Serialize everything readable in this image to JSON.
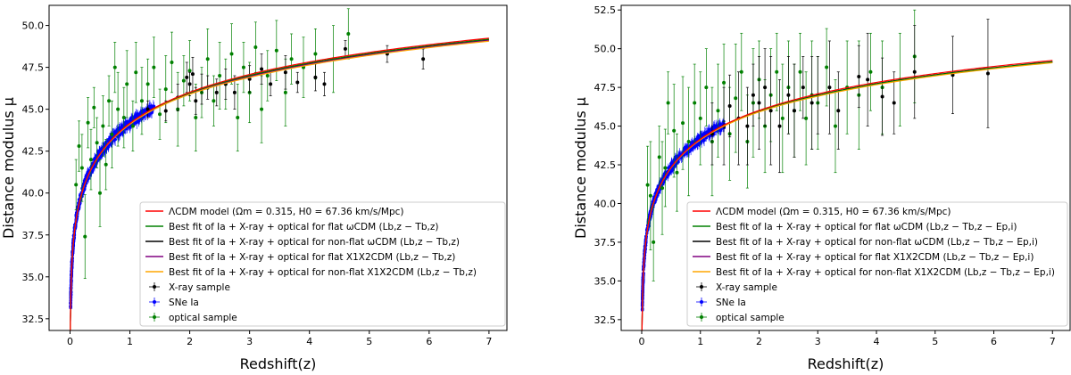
{
  "chart_data": [
    {
      "type": "scatter",
      "xlabel": "Redshift(z)",
      "ylabel": "Distance modulus μ",
      "xlim": [
        -0.35,
        7.3
      ],
      "ylim": [
        31.8,
        51.2
      ],
      "xticks": [
        "0",
        "1",
        "2",
        "3",
        "4",
        "5",
        "6",
        "7"
      ],
      "xtick_values": [
        0,
        1,
        2,
        3,
        4,
        5,
        6,
        7
      ],
      "yticks": [
        "32.5",
        "35.0",
        "37.5",
        "40.0",
        "42.5",
        "45.0",
        "47.5",
        "50.0"
      ],
      "ytick_values": [
        32.5,
        35,
        37.5,
        40,
        42.5,
        45,
        47.5,
        50
      ],
      "legend_position": "lower-right",
      "legend": [
        {
          "label": "ΛCDM model (Ωm = 0.315, H0 = 67.36 km/s/Mpc)",
          "color": "#ff0000",
          "kind": "line"
        },
        {
          "label": "Best fit of Ia + X-ray + optical for flat ωCDM (Lb,z − Tb,z)",
          "color": "#008000",
          "kind": "line"
        },
        {
          "label": "Best fit of Ia + X-ray + optical for non-flat ωCDM (Lb,z − Tb,z)",
          "color": "#000000",
          "kind": "line"
        },
        {
          "label": "Best fit of Ia + X-ray + optical for flat X1X2CDM (Lb,z − Tb,z)",
          "color": "#800080",
          "kind": "line"
        },
        {
          "label": "Best fit of Ia + X-ray + optical for non-flat X1X2CDM (Lb,z − Tb,z)",
          "color": "#ffa500",
          "kind": "line"
        },
        {
          "label": "X-ray sample",
          "color": "#000000",
          "kind": "marker"
        },
        {
          "label": "SNe Ia",
          "color": "#0000ff",
          "kind": "marker"
        },
        {
          "label": "optical sample",
          "color": "#008000",
          "kind": "marker"
        }
      ],
      "curve_offsets": [
        0.0,
        -0.06,
        -0.1,
        -0.13,
        -0.18
      ],
      "xray_points": [
        {
          "x": 1.3,
          "y": 45.0,
          "err": 0.5
        },
        {
          "x": 1.6,
          "y": 44.9,
          "err": 0.6
        },
        {
          "x": 1.8,
          "y": 45.7,
          "err": 0.8
        },
        {
          "x": 1.95,
          "y": 46.9,
          "err": 0.9
        },
        {
          "x": 2.0,
          "y": 46.5,
          "err": 0.7
        },
        {
          "x": 2.05,
          "y": 47.1,
          "err": 1.0
        },
        {
          "x": 2.1,
          "y": 45.5,
          "err": 0.8
        },
        {
          "x": 2.2,
          "y": 46.2,
          "err": 0.9
        },
        {
          "x": 2.3,
          "y": 46.3,
          "err": 0.7
        },
        {
          "x": 2.45,
          "y": 46.0,
          "err": 0.8
        },
        {
          "x": 2.6,
          "y": 46.5,
          "err": 0.9
        },
        {
          "x": 2.75,
          "y": 46.0,
          "err": 1.0
        },
        {
          "x": 3.0,
          "y": 46.8,
          "err": 0.8
        },
        {
          "x": 3.2,
          "y": 47.4,
          "err": 0.9
        },
        {
          "x": 3.35,
          "y": 46.5,
          "err": 0.7
        },
        {
          "x": 3.6,
          "y": 47.2,
          "err": 1.0
        },
        {
          "x": 3.8,
          "y": 46.6,
          "err": 0.6
        },
        {
          "x": 4.1,
          "y": 46.9,
          "err": 0.8
        },
        {
          "x": 4.25,
          "y": 46.5,
          "err": 0.7
        },
        {
          "x": 4.6,
          "y": 48.6,
          "err": 0.5
        },
        {
          "x": 5.3,
          "y": 48.3,
          "err": 0.5
        },
        {
          "x": 5.9,
          "y": 48.0,
          "err": 0.6
        }
      ],
      "optical_points": [
        {
          "x": 0.1,
          "y": 40.5,
          "err": 1.5
        },
        {
          "x": 0.15,
          "y": 42.8,
          "err": 1.5
        },
        {
          "x": 0.2,
          "y": 41.5,
          "err": 2.0
        },
        {
          "x": 0.25,
          "y": 37.4,
          "err": 2.5
        },
        {
          "x": 0.3,
          "y": 44.2,
          "err": 1.5
        },
        {
          "x": 0.35,
          "y": 42.0,
          "err": 1.8
        },
        {
          "x": 0.4,
          "y": 45.1,
          "err": 1.2
        },
        {
          "x": 0.45,
          "y": 43.0,
          "err": 1.5
        },
        {
          "x": 0.5,
          "y": 40.0,
          "err": 2.0
        },
        {
          "x": 0.55,
          "y": 44.0,
          "err": 1.8
        },
        {
          "x": 0.6,
          "y": 41.7,
          "err": 1.5
        },
        {
          "x": 0.65,
          "y": 45.5,
          "err": 1.5
        },
        {
          "x": 0.7,
          "y": 43.5,
          "err": 2.0
        },
        {
          "x": 0.75,
          "y": 47.5,
          "err": 1.5
        },
        {
          "x": 0.8,
          "y": 45.0,
          "err": 2.2
        },
        {
          "x": 0.9,
          "y": 44.5,
          "err": 1.8
        },
        {
          "x": 0.95,
          "y": 46.5,
          "err": 2.0
        },
        {
          "x": 1.05,
          "y": 44.0,
          "err": 1.5
        },
        {
          "x": 1.1,
          "y": 47.2,
          "err": 1.8
        },
        {
          "x": 1.2,
          "y": 45.5,
          "err": 2.0
        },
        {
          "x": 1.3,
          "y": 46.5,
          "err": 1.5
        },
        {
          "x": 1.4,
          "y": 47.5,
          "err": 1.8
        },
        {
          "x": 1.5,
          "y": 44.7,
          "err": 1.5
        },
        {
          "x": 1.6,
          "y": 46.2,
          "err": 2.0
        },
        {
          "x": 1.7,
          "y": 47.8,
          "err": 1.8
        },
        {
          "x": 1.8,
          "y": 45.0,
          "err": 2.2
        },
        {
          "x": 1.9,
          "y": 46.7,
          "err": 1.5
        },
        {
          "x": 2.0,
          "y": 47.3,
          "err": 1.8
        },
        {
          "x": 2.1,
          "y": 44.5,
          "err": 2.0
        },
        {
          "x": 2.2,
          "y": 46.0,
          "err": 1.5
        },
        {
          "x": 2.3,
          "y": 48.0,
          "err": 1.8
        },
        {
          "x": 2.4,
          "y": 45.5,
          "err": 1.5
        },
        {
          "x": 2.5,
          "y": 47.0,
          "err": 2.0
        },
        {
          "x": 2.6,
          "y": 46.5,
          "err": 1.5
        },
        {
          "x": 2.7,
          "y": 48.3,
          "err": 1.8
        },
        {
          "x": 2.8,
          "y": 44.5,
          "err": 2.0
        },
        {
          "x": 2.9,
          "y": 47.5,
          "err": 1.5
        },
        {
          "x": 3.0,
          "y": 46.0,
          "err": 1.8
        },
        {
          "x": 3.1,
          "y": 48.7,
          "err": 1.5
        },
        {
          "x": 3.2,
          "y": 45.0,
          "err": 2.0
        },
        {
          "x": 3.3,
          "y": 47.0,
          "err": 1.5
        },
        {
          "x": 3.45,
          "y": 48.5,
          "err": 1.8
        },
        {
          "x": 3.6,
          "y": 46.0,
          "err": 2.0
        },
        {
          "x": 3.7,
          "y": 48.0,
          "err": 1.5
        },
        {
          "x": 3.9,
          "y": 47.5,
          "err": 1.8
        },
        {
          "x": 4.1,
          "y": 48.3,
          "err": 1.5
        },
        {
          "x": 4.4,
          "y": 48.0,
          "err": 2.0
        },
        {
          "x": 4.65,
          "y": 49.5,
          "err": 1.5
        }
      ]
    },
    {
      "type": "scatter",
      "xlabel": "Redshift(z)",
      "ylabel": "Distance modulus μ",
      "xlim": [
        -0.35,
        7.3
      ],
      "ylim": [
        31.8,
        52.8
      ],
      "xticks": [
        "0",
        "1",
        "2",
        "3",
        "4",
        "5",
        "6",
        "7"
      ],
      "xtick_values": [
        0,
        1,
        2,
        3,
        4,
        5,
        6,
        7
      ],
      "yticks": [
        "32.5",
        "35.0",
        "37.5",
        "40.0",
        "42.5",
        "45.0",
        "47.5",
        "50.0",
        "52.5"
      ],
      "ytick_values": [
        32.5,
        35,
        37.5,
        40,
        42.5,
        45,
        47.5,
        50,
        52.5
      ],
      "legend_position": "lower-right",
      "legend": [
        {
          "label": "ΛCDM model (Ωm = 0.315, H0 = 67.36 km/s/Mpc)",
          "color": "#ff0000",
          "kind": "line"
        },
        {
          "label": "Best fit of Ia + X-ray + optical for flat ωCDM (Lb,z − Tb,z − Ep,i)",
          "color": "#008000",
          "kind": "line"
        },
        {
          "label": "Best fit of Ia + X-ray + optical for non-flat ωCDM (Lb,z − Tb,z − Ep,i)",
          "color": "#000000",
          "kind": "line"
        },
        {
          "label": "Best fit of Ia + X-ray + optical for flat X1X2CDM (Lb,z − Tb,z − Ep,i)",
          "color": "#800080",
          "kind": "line"
        },
        {
          "label": "Best fit of Ia + X-ray + optical for non-flat X1X2CDM (Lb,z − Tb,z − Ep,i)",
          "color": "#ffa500",
          "kind": "line"
        },
        {
          "label": "X-ray sample",
          "color": "#000000",
          "kind": "marker"
        },
        {
          "label": "SNe Ia",
          "color": "#0000ff",
          "kind": "marker"
        },
        {
          "label": "optical sample",
          "color": "#008000",
          "kind": "marker"
        }
      ],
      "curve_offsets": [
        0.0,
        -0.1,
        -0.08,
        -0.12,
        -0.15
      ],
      "xray_points": [
        {
          "x": 1.2,
          "y": 44.5,
          "err": 2.0
        },
        {
          "x": 1.4,
          "y": 45.0,
          "err": 2.5
        },
        {
          "x": 1.5,
          "y": 46.3,
          "err": 2.0
        },
        {
          "x": 1.65,
          "y": 45.5,
          "err": 3.0
        },
        {
          "x": 1.8,
          "y": 45.0,
          "err": 2.5
        },
        {
          "x": 1.9,
          "y": 47.0,
          "err": 2.0
        },
        {
          "x": 2.0,
          "y": 46.5,
          "err": 3.0
        },
        {
          "x": 2.1,
          "y": 47.5,
          "err": 2.5
        },
        {
          "x": 2.2,
          "y": 46.0,
          "err": 3.5
        },
        {
          "x": 2.35,
          "y": 45.0,
          "err": 3.0
        },
        {
          "x": 2.5,
          "y": 47.0,
          "err": 2.5
        },
        {
          "x": 2.6,
          "y": 46.0,
          "err": 3.0
        },
        {
          "x": 2.75,
          "y": 47.5,
          "err": 2.0
        },
        {
          "x": 2.9,
          "y": 46.5,
          "err": 3.0
        },
        {
          "x": 3.0,
          "y": 47.0,
          "err": 2.5
        },
        {
          "x": 3.2,
          "y": 47.5,
          "err": 3.0
        },
        {
          "x": 3.35,
          "y": 46.0,
          "err": 2.5
        },
        {
          "x": 3.7,
          "y": 48.2,
          "err": 2.0
        },
        {
          "x": 3.85,
          "y": 48.0,
          "err": 3.0
        },
        {
          "x": 4.1,
          "y": 46.9,
          "err": 2.5
        },
        {
          "x": 4.3,
          "y": 46.5,
          "err": 2.0
        },
        {
          "x": 4.65,
          "y": 48.5,
          "err": 3.0
        },
        {
          "x": 5.3,
          "y": 48.3,
          "err": 2.5
        },
        {
          "x": 5.9,
          "y": 48.4,
          "err": 3.5
        }
      ],
      "optical_points": [
        {
          "x": 0.1,
          "y": 41.2,
          "err": 2.5
        },
        {
          "x": 0.15,
          "y": 40.5,
          "err": 3.5
        },
        {
          "x": 0.2,
          "y": 37.5,
          "err": 2.5
        },
        {
          "x": 0.3,
          "y": 43.0,
          "err": 2.0
        },
        {
          "x": 0.35,
          "y": 41.0,
          "err": 3.0
        },
        {
          "x": 0.4,
          "y": 42.3,
          "err": 2.5
        },
        {
          "x": 0.45,
          "y": 46.5,
          "err": 2.0
        },
        {
          "x": 0.55,
          "y": 44.7,
          "err": 3.0
        },
        {
          "x": 0.6,
          "y": 42.0,
          "err": 2.5
        },
        {
          "x": 0.7,
          "y": 45.2,
          "err": 3.0
        },
        {
          "x": 0.8,
          "y": 44.0,
          "err": 3.5
        },
        {
          "x": 0.9,
          "y": 46.5,
          "err": 2.5
        },
        {
          "x": 1.0,
          "y": 45.5,
          "err": 3.0
        },
        {
          "x": 1.1,
          "y": 47.5,
          "err": 2.5
        },
        {
          "x": 1.2,
          "y": 44.0,
          "err": 3.5
        },
        {
          "x": 1.3,
          "y": 46.0,
          "err": 3.0
        },
        {
          "x": 1.4,
          "y": 47.8,
          "err": 2.5
        },
        {
          "x": 1.5,
          "y": 44.5,
          "err": 3.0
        },
        {
          "x": 1.6,
          "y": 46.8,
          "err": 3.5
        },
        {
          "x": 1.7,
          "y": 48.5,
          "err": 2.5
        },
        {
          "x": 1.8,
          "y": 44.0,
          "err": 3.0
        },
        {
          "x": 1.9,
          "y": 46.5,
          "err": 3.5
        },
        {
          "x": 2.0,
          "y": 48.0,
          "err": 2.5
        },
        {
          "x": 2.1,
          "y": 45.0,
          "err": 3.0
        },
        {
          "x": 2.2,
          "y": 47.0,
          "err": 3.0
        },
        {
          "x": 2.3,
          "y": 48.5,
          "err": 2.5
        },
        {
          "x": 2.4,
          "y": 45.5,
          "err": 3.5
        },
        {
          "x": 2.5,
          "y": 47.5,
          "err": 3.0
        },
        {
          "x": 2.6,
          "y": 46.0,
          "err": 3.0
        },
        {
          "x": 2.7,
          "y": 48.5,
          "err": 2.5
        },
        {
          "x": 2.8,
          "y": 45.5,
          "err": 3.0
        },
        {
          "x": 2.9,
          "y": 47.0,
          "err": 3.5
        },
        {
          "x": 3.0,
          "y": 46.5,
          "err": 3.0
        },
        {
          "x": 3.15,
          "y": 48.8,
          "err": 2.5
        },
        {
          "x": 3.3,
          "y": 45.0,
          "err": 3.0
        },
        {
          "x": 3.5,
          "y": 47.5,
          "err": 3.0
        },
        {
          "x": 3.7,
          "y": 47.0,
          "err": 3.5
        },
        {
          "x": 3.9,
          "y": 48.5,
          "err": 2.5
        },
        {
          "x": 4.1,
          "y": 47.5,
          "err": 3.0
        },
        {
          "x": 4.4,
          "y": 48.0,
          "err": 3.0
        },
        {
          "x": 4.65,
          "y": 49.5,
          "err": 3.0
        }
      ]
    }
  ]
}
